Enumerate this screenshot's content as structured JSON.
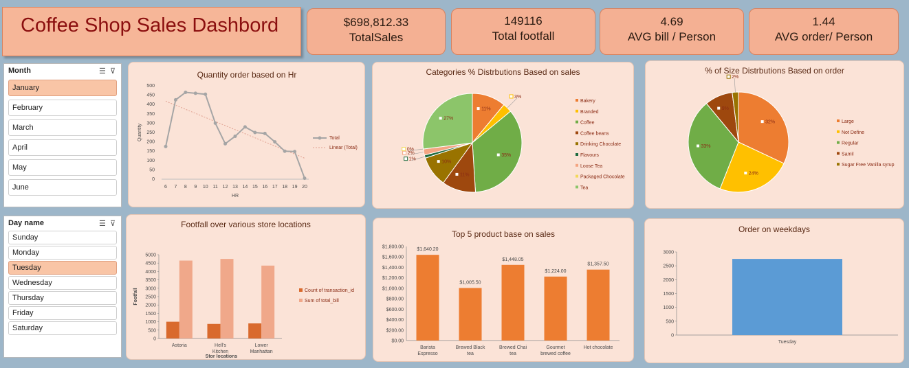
{
  "header": {
    "title": "Coffee Shop Sales Dashbord"
  },
  "kpis": [
    {
      "value": "$698,812.33",
      "label": "TotalSales"
    },
    {
      "value": "149116",
      "label": "Total footfall"
    },
    {
      "value": "4.69",
      "label": "AVG bill / Person"
    },
    {
      "value": "1.44",
      "label": "AVG order/ Person"
    }
  ],
  "month_slicer": {
    "title": "Month",
    "items": [
      "January",
      "February",
      "March",
      "April",
      "May",
      "June"
    ],
    "selected": "January"
  },
  "day_slicer": {
    "title": "Day name",
    "items": [
      "Sunday",
      "Monday",
      "Tuesday",
      "Wednesday",
      "Thursday",
      "Friday",
      "Saturday"
    ],
    "selected": "Tuesday"
  },
  "colors": {
    "orange": "#ed7d31",
    "light_orange": "#f0a88a",
    "dark_orange": "#d96a2d",
    "gray_line": "#a5a5a5",
    "blue": "#5b9bd5",
    "title_red": "#8b0f0f"
  },
  "chart_data": [
    {
      "id": "hourly",
      "type": "line",
      "title": "Quantity order based on Hr",
      "xlabel": "HR",
      "ylabel": "Quantity",
      "x": [
        6,
        7,
        8,
        9,
        10,
        11,
        12,
        13,
        14,
        15,
        16,
        17,
        18,
        19,
        20
      ],
      "series": [
        {
          "name": "Total",
          "values": [
            175,
            425,
            465,
            460,
            455,
            300,
            190,
            230,
            280,
            250,
            245,
            200,
            150,
            148,
            5
          ]
        }
      ],
      "trendline": {
        "name": "Linear (Total)"
      },
      "ylim": [
        0,
        500
      ],
      "yticks": [
        0,
        50,
        100,
        150,
        200,
        250,
        300,
        350,
        400,
        450,
        500
      ],
      "legend": "right"
    },
    {
      "id": "categories",
      "type": "pie",
      "title": "Categories % Distrbutions Based on sales",
      "labels": [
        "Bakery",
        "Branded",
        "Coffee",
        "Coffee beans",
        "Drinking Chocolate",
        "Flavours",
        "Loose Tea",
        "Packaged Chocolate",
        "Tea"
      ],
      "values": [
        11,
        3,
        35,
        11,
        10,
        1,
        2,
        0,
        27
      ],
      "data_labels": [
        "11%",
        "3%",
        "35%",
        "11%",
        "10%",
        "1%",
        "2%",
        "0%",
        "27%"
      ],
      "colors": [
        "#ed7d31",
        "#ffc000",
        "#70ad47",
        "#9e480e",
        "#997300",
        "#1e6b3f",
        "#f4a582",
        "#f2d95a",
        "#8cc56a"
      ],
      "legend": "right"
    },
    {
      "id": "sizes",
      "type": "pie",
      "title": "% of Size Distrbutions Based on order",
      "labels": [
        "Large",
        "Not Define",
        "Regular",
        "Samil",
        "Sugar Free Vanilla syrup"
      ],
      "values": [
        32,
        24,
        33,
        9,
        2
      ],
      "data_labels": [
        "32%",
        "24%",
        "33%",
        "9%",
        "2%"
      ],
      "colors": [
        "#ed7d31",
        "#ffc000",
        "#70ad47",
        "#9e480e",
        "#997300"
      ],
      "legend": "right"
    },
    {
      "id": "locations",
      "type": "bar",
      "title": "Footfall over various store locations",
      "xlabel": "Stor locations",
      "ylabel": "Footfall",
      "categories": [
        "Astoria",
        "Hell's Kitchen",
        "Lower Manhattan"
      ],
      "series": [
        {
          "name": "Count of transaction_id",
          "values": [
            1000,
            870,
            900
          ]
        },
        {
          "name": "Sum of total_bill",
          "values": [
            4650,
            4750,
            4350
          ]
        }
      ],
      "ylim": [
        0,
        5000
      ],
      "yticks": [
        0,
        500,
        1000,
        1500,
        2000,
        2500,
        3000,
        3500,
        4000,
        4500,
        5000
      ],
      "legend": "right"
    },
    {
      "id": "top5",
      "type": "bar",
      "title": "Top 5 product base on sales",
      "categories": [
        "Barista Espresso",
        "Brewed Black tea",
        "Brewed Chai tea",
        "Gourmet brewed coffee",
        "Hot chocolate"
      ],
      "values": [
        1640.2,
        1005.5,
        1448.05,
        1224.0,
        1357.5
      ],
      "data_labels": [
        "$1,640.20",
        "$1,005.50",
        "$1,448.05",
        "$1,224.00",
        "$1,357.50"
      ],
      "ylim": [
        0,
        1800
      ],
      "ytick_labels": [
        "$0.00",
        "$200.00",
        "$400.00",
        "$600.00",
        "$800.00",
        "$1,000.00",
        "$1,200.00",
        "$1,400.00",
        "$1,600.00",
        "$1,800.00"
      ]
    },
    {
      "id": "weekday",
      "type": "bar",
      "title": "Order on weekdays",
      "categories": [
        "Tuesday"
      ],
      "values": [
        2750
      ],
      "ylim": [
        0,
        3000
      ],
      "yticks": [
        0,
        500,
        1000,
        1500,
        2000,
        2500,
        3000
      ]
    }
  ]
}
